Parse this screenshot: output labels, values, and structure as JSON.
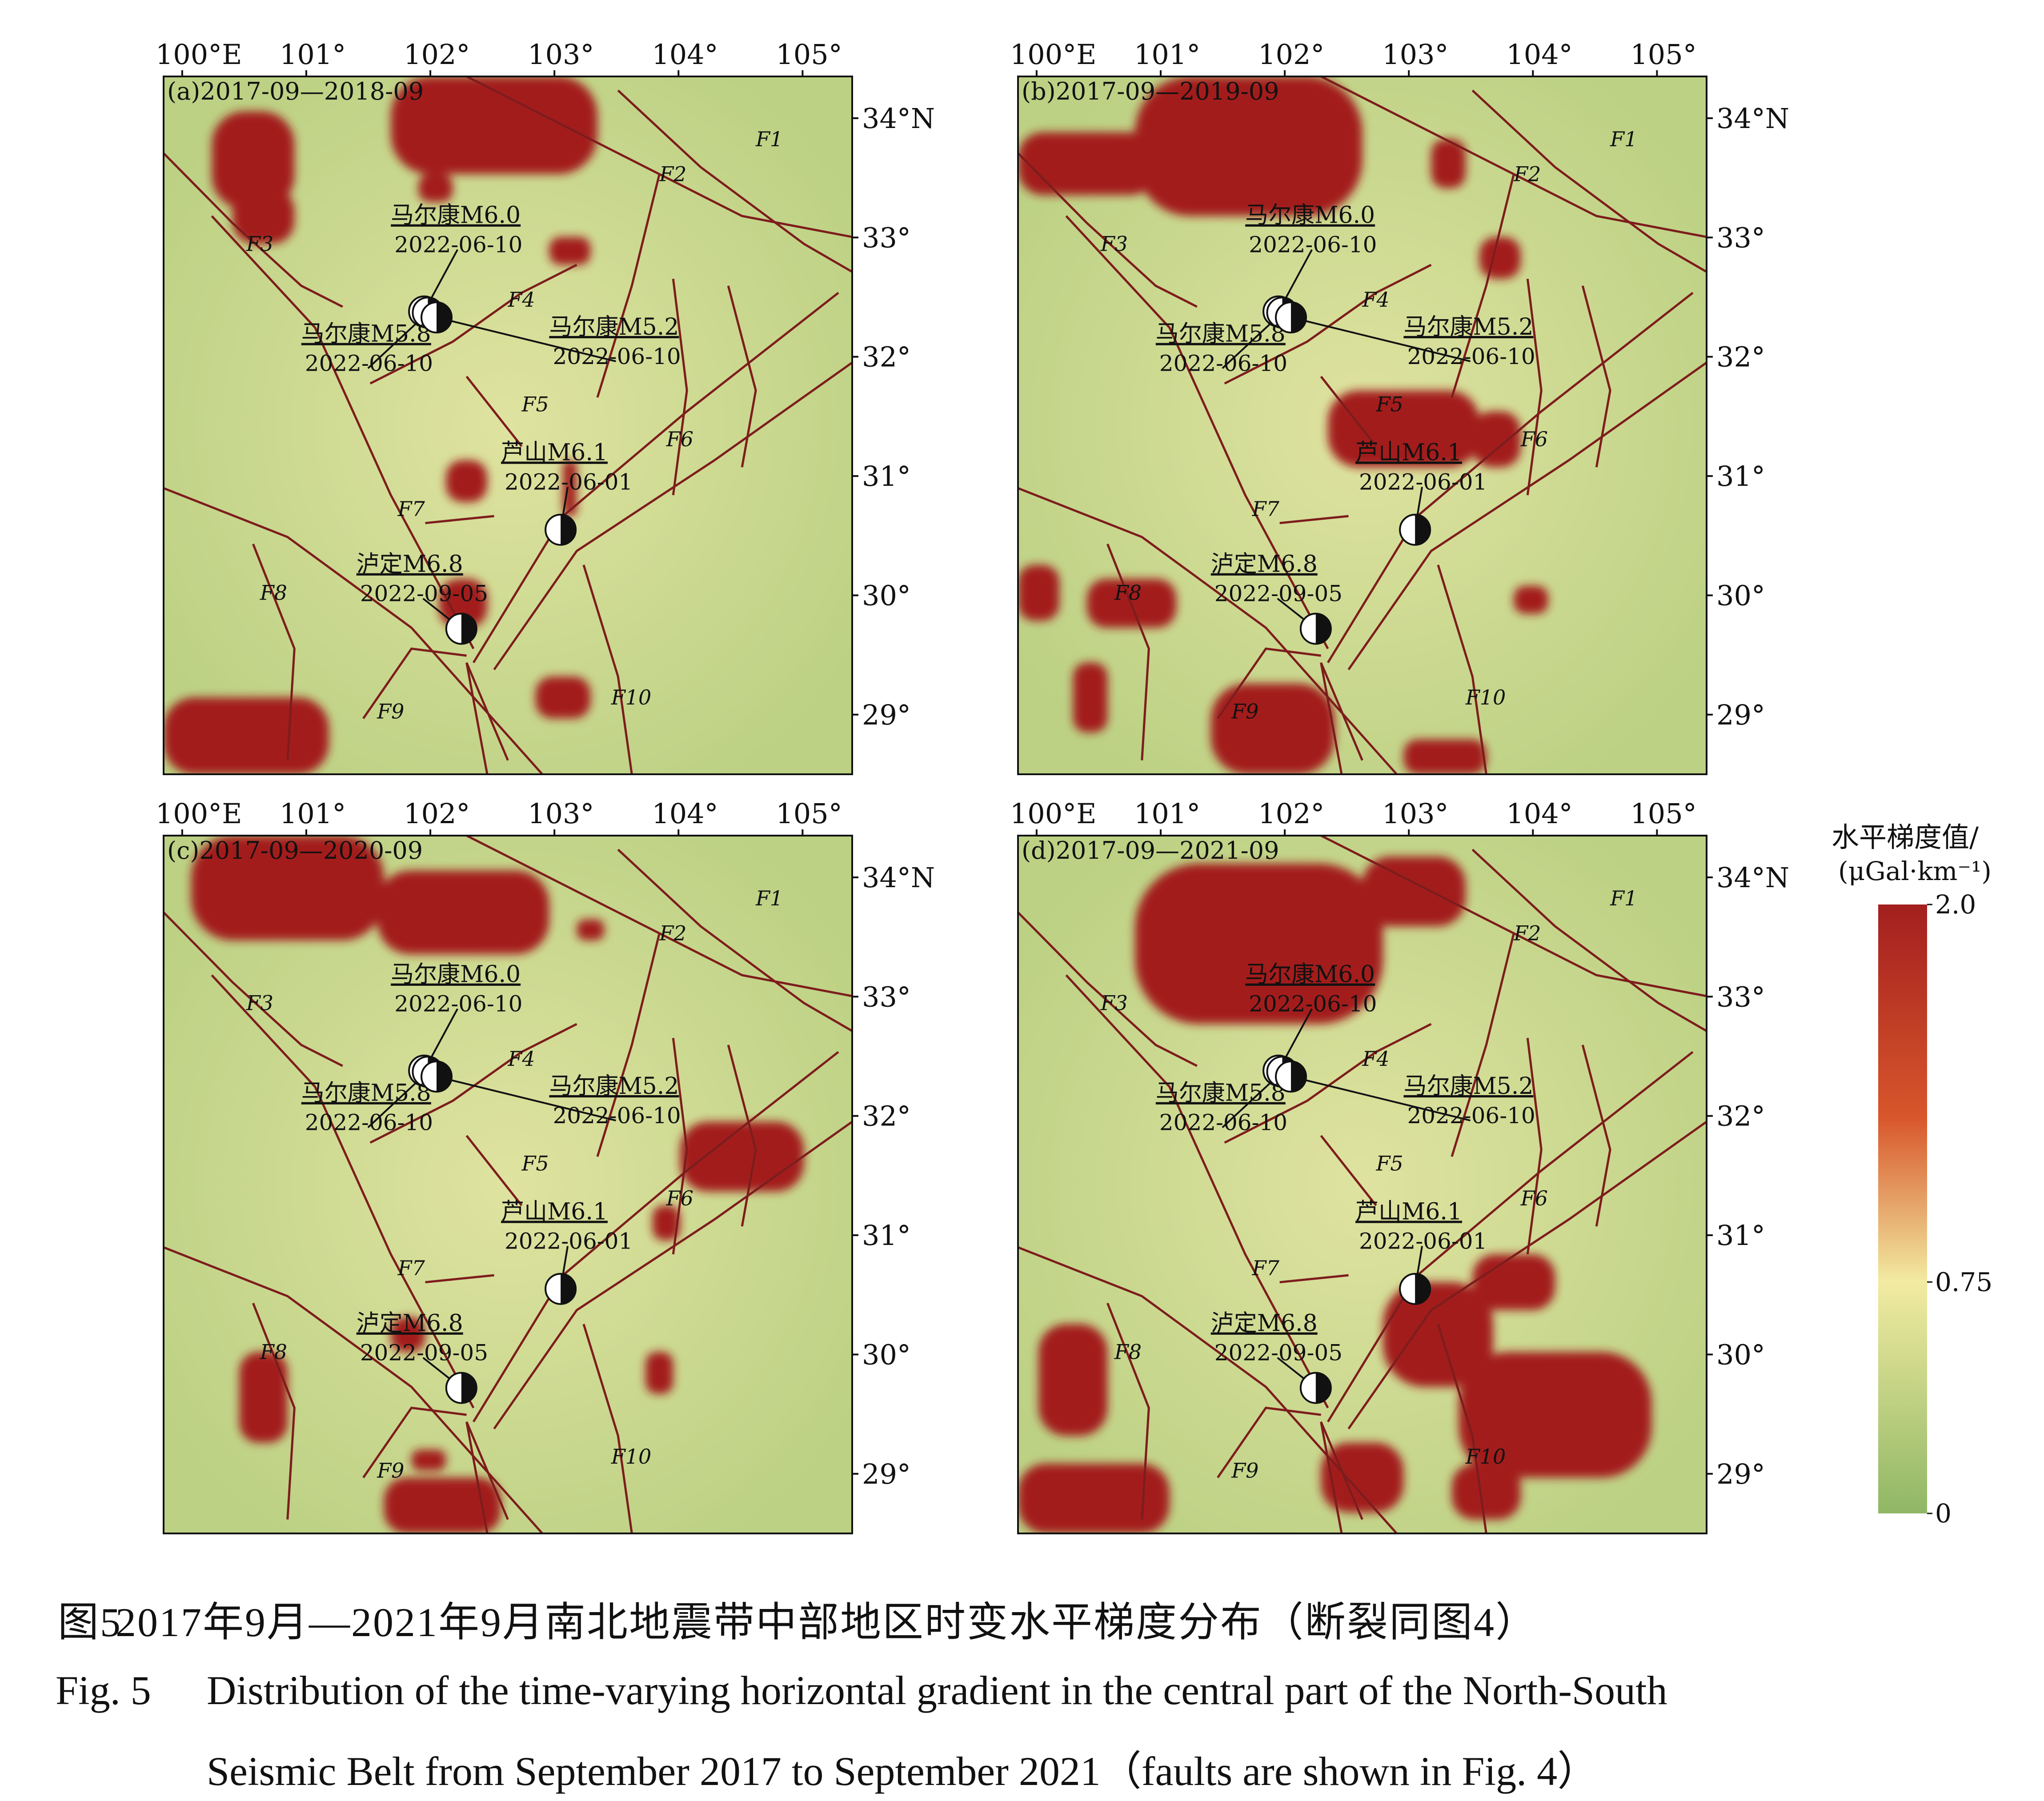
{
  "panels": [
    {
      "label": "(a)2017-09—2018-09"
    },
    {
      "label": "(b)2017-09—2019-09"
    },
    {
      "label": "(c)2017-09—2020-09"
    },
    {
      "label": "(d)2017-09—2021-09"
    }
  ],
  "axes": {
    "lon_ticks": [
      "100°E",
      "101°",
      "102°",
      "103°",
      "104°",
      "105°"
    ],
    "lat_ticks": [
      "34°N",
      "33°",
      "32°",
      "31°",
      "30°",
      "29°"
    ]
  },
  "faults": [
    "F1",
    "F2",
    "F3",
    "F4",
    "F5",
    "F6",
    "F7",
    "F8",
    "F9",
    "F10"
  ],
  "earthquakes": [
    {
      "name": "马尔康M6.0",
      "date": "2022-06-10"
    },
    {
      "name": "马尔康M5.8",
      "date": "2022-06-10"
    },
    {
      "name": "马尔康M5.2",
      "date": "2022-06-10"
    },
    {
      "name": "芦山M6.1",
      "date": "2022-06-01"
    },
    {
      "name": "泸定M6.8",
      "date": "2022-09-05"
    }
  ],
  "colorbar": {
    "title_line1": "水平梯度值/",
    "title_line2": "(μGal·km⁻¹)",
    "ticks": [
      "2.0",
      "0.75",
      "0"
    ],
    "colors": [
      "#a31f1f",
      "#d8562b",
      "#f2eba1",
      "#8fb765"
    ]
  },
  "caption": {
    "cn_label": "图5",
    "cn_text": "2017年9月—2021年9月南北地震带中部地区时变水平梯度分布（断裂同图4）",
    "en_label": "Fig. 5",
    "en_line1": "Distribution of the time‐varying horizontal gradient in the central part of the North‐South",
    "en_line2": "Seismic Belt from September 2017 to September 2021（faults are shown in Fig. 4）"
  },
  "colors": {
    "fault": "#7d1d1d",
    "background_field": "#c3d58a",
    "anomaly": "#a31f1f"
  }
}
